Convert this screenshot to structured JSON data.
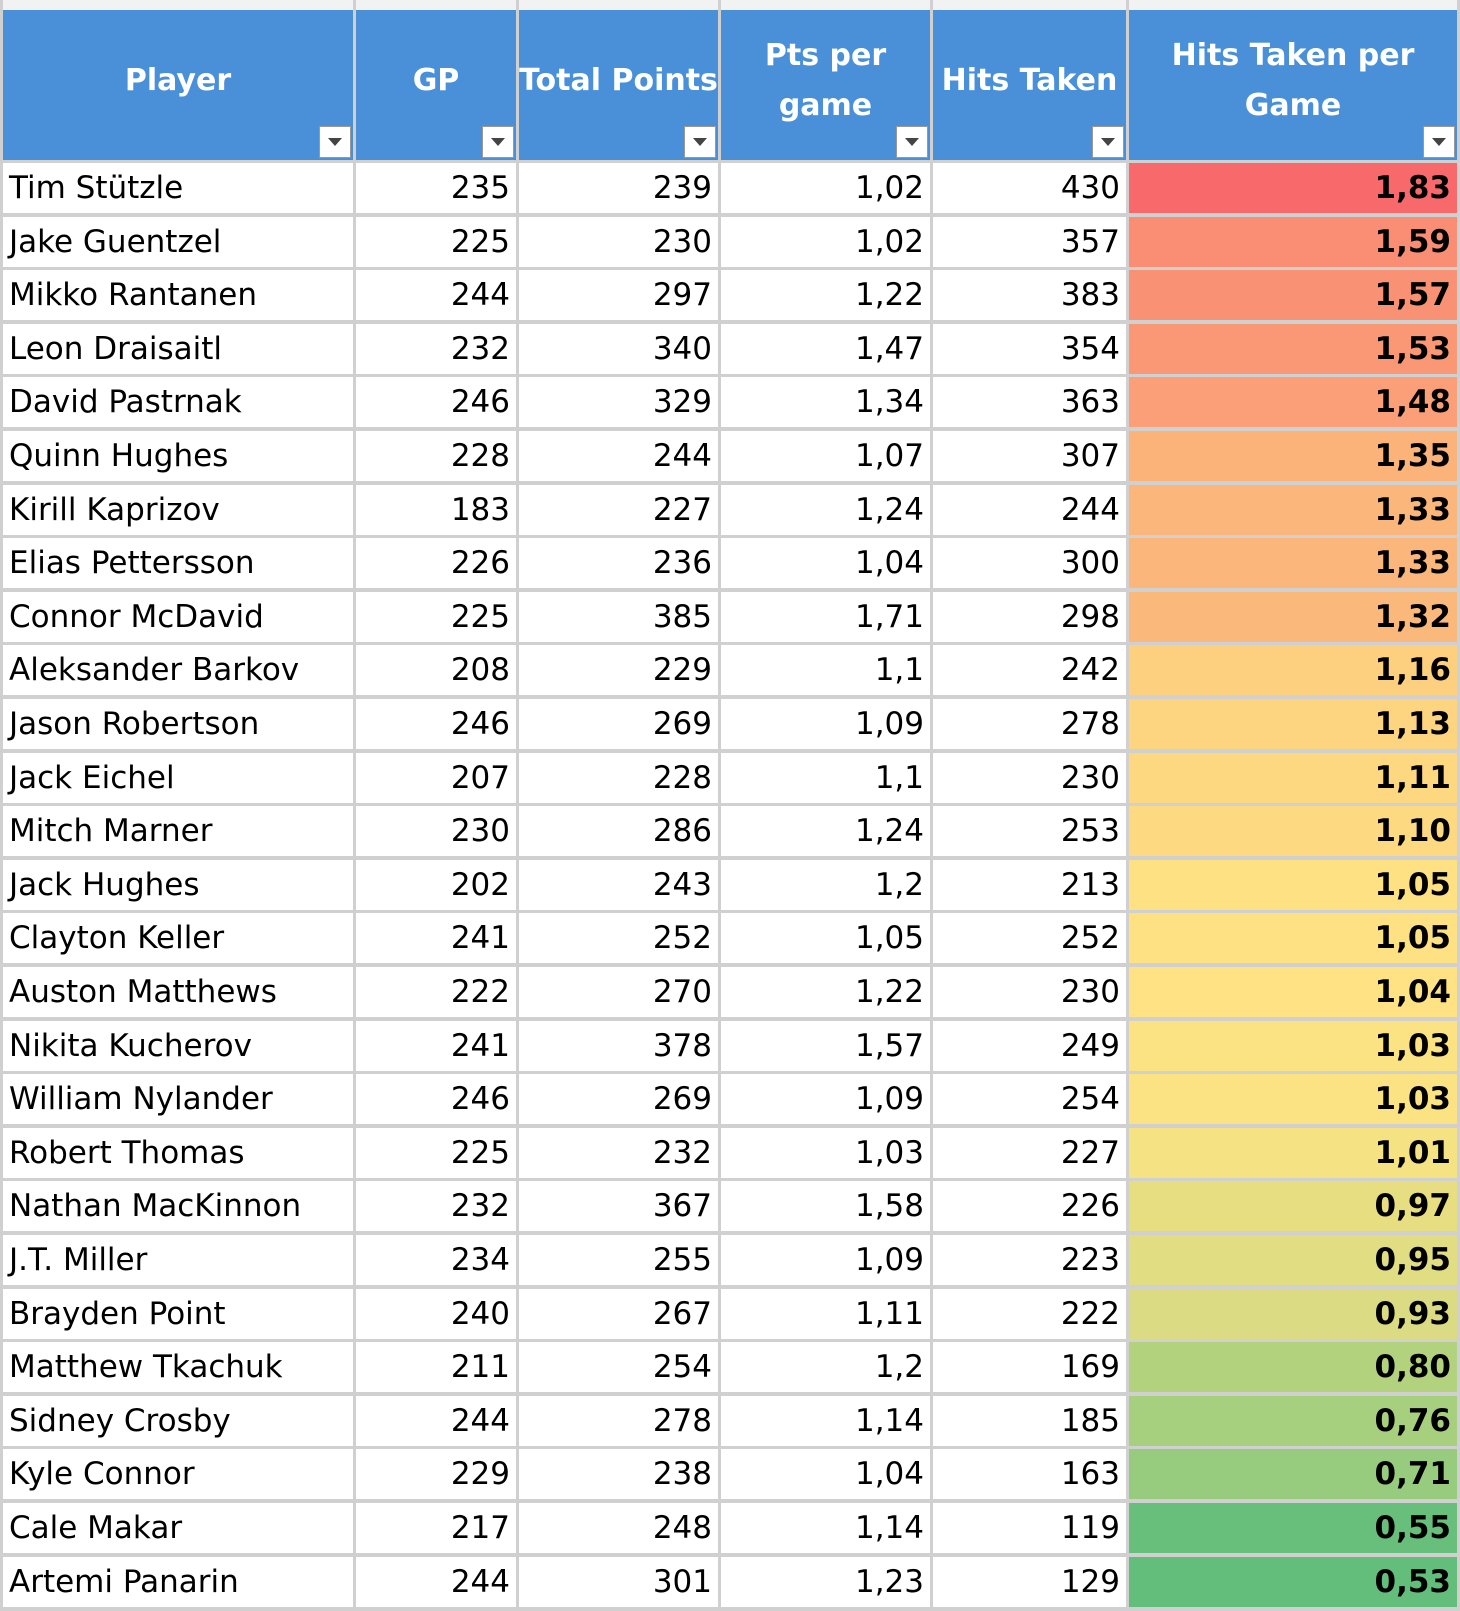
{
  "table": {
    "columns": [
      {
        "key": "player",
        "label": "Player",
        "align": "left"
      },
      {
        "key": "gp",
        "label": "GP",
        "align": "right"
      },
      {
        "key": "total_points",
        "label": "Total Points",
        "align": "right"
      },
      {
        "key": "pts_per_game",
        "label": "Pts per\ngame",
        "align": "right"
      },
      {
        "key": "hits_taken",
        "label": "Hits Taken",
        "align": "right"
      },
      {
        "key": "hits_per_game",
        "label": "Hits Taken per\nGame",
        "align": "right"
      }
    ],
    "filter_icon": "dropdown-arrow-icon",
    "header_color": "#4a90d9",
    "header_text_color": "#ffffff",
    "rows": [
      {
        "player": "Tim Stützle",
        "gp": "235",
        "total_points": "239",
        "pts_per_game": "1,02",
        "hits_taken": "430",
        "hits_per_game": "1,83",
        "heat_color": "#f8696b"
      },
      {
        "player": "Jake Guentzel",
        "gp": "225",
        "total_points": "230",
        "pts_per_game": "1,02",
        "hits_taken": "357",
        "hits_per_game": "1,59",
        "heat_color": "#f98e74"
      },
      {
        "player": "Mikko Rantanen",
        "gp": "244",
        "total_points": "297",
        "pts_per_game": "1,22",
        "hits_taken": "383",
        "hits_per_game": "1,57",
        "heat_color": "#f99174"
      },
      {
        "player": "Leon Draisaitl",
        "gp": "232",
        "total_points": "340",
        "pts_per_game": "1,47",
        "hits_taken": "354",
        "hits_per_game": "1,53",
        "heat_color": "#fa9775"
      },
      {
        "player": "David Pastrnak",
        "gp": "246",
        "total_points": "329",
        "pts_per_game": "1,34",
        "hits_taken": "363",
        "hits_per_game": "1,48",
        "heat_color": "#fa9f77"
      },
      {
        "player": "Quinn Hughes",
        "gp": "228",
        "total_points": "244",
        "pts_per_game": "1,07",
        "hits_taken": "307",
        "hits_per_game": "1,35",
        "heat_color": "#fbb37a"
      },
      {
        "player": "Kirill Kaprizov",
        "gp": "183",
        "total_points": "227",
        "pts_per_game": "1,24",
        "hits_taken": "244",
        "hits_per_game": "1,33",
        "heat_color": "#fbb67b"
      },
      {
        "player": "Elias Pettersson",
        "gp": "226",
        "total_points": "236",
        "pts_per_game": "1,04",
        "hits_taken": "300",
        "hits_per_game": "1,33",
        "heat_color": "#fbb67b"
      },
      {
        "player": "Connor McDavid",
        "gp": "225",
        "total_points": "385",
        "pts_per_game": "1,71",
        "hits_taken": "298",
        "hits_per_game": "1,32",
        "heat_color": "#fbb87b"
      },
      {
        "player": "Aleksander Barkov",
        "gp": "208",
        "total_points": "229",
        "pts_per_game": "1,1",
        "hits_taken": "242",
        "hits_per_game": "1,16",
        "heat_color": "#fdd07f"
      },
      {
        "player": "Jason Robertson",
        "gp": "246",
        "total_points": "269",
        "pts_per_game": "1,09",
        "hits_taken": "278",
        "hits_per_game": "1,13",
        "heat_color": "#fdd580"
      },
      {
        "player": "Jack Eichel",
        "gp": "207",
        "total_points": "228",
        "pts_per_game": "1,1",
        "hits_taken": "230",
        "hits_per_game": "1,11",
        "heat_color": "#fdd881"
      },
      {
        "player": "Mitch Marner",
        "gp": "230",
        "total_points": "286",
        "pts_per_game": "1,24",
        "hits_taken": "253",
        "hits_per_game": "1,10",
        "heat_color": "#fdd981"
      },
      {
        "player": "Jack Hughes",
        "gp": "202",
        "total_points": "243",
        "pts_per_game": "1,2",
        "hits_taken": "213",
        "hits_per_game": "1,05",
        "heat_color": "#fee182"
      },
      {
        "player": "Clayton Keller",
        "gp": "241",
        "total_points": "252",
        "pts_per_game": "1,05",
        "hits_taken": "252",
        "hits_per_game": "1,05",
        "heat_color": "#fee182"
      },
      {
        "player": "Auston Matthews",
        "gp": "222",
        "total_points": "270",
        "pts_per_game": "1,22",
        "hits_taken": "230",
        "hits_per_game": "1,04",
        "heat_color": "#fee283"
      },
      {
        "player": "Nikita Kucherov",
        "gp": "241",
        "total_points": "378",
        "pts_per_game": "1,57",
        "hits_taken": "249",
        "hits_per_game": "1,03",
        "heat_color": "#fbe383"
      },
      {
        "player": "William Nylander",
        "gp": "246",
        "total_points": "269",
        "pts_per_game": "1,09",
        "hits_taken": "254",
        "hits_per_game": "1,03",
        "heat_color": "#fbe383"
      },
      {
        "player": "Robert Thomas",
        "gp": "225",
        "total_points": "232",
        "pts_per_game": "1,03",
        "hits_taken": "227",
        "hits_per_game": "1,01",
        "heat_color": "#f4e283"
      },
      {
        "player": "Nathan MacKinnon",
        "gp": "232",
        "total_points": "367",
        "pts_per_game": "1,58",
        "hits_taken": "226",
        "hits_per_game": "0,97",
        "heat_color": "#e7de82"
      },
      {
        "player": "J.T. Miller",
        "gp": "234",
        "total_points": "255",
        "pts_per_game": "1,09",
        "hits_taken": "223",
        "hits_per_game": "0,95",
        "heat_color": "#e1dd82"
      },
      {
        "player": "Brayden Point",
        "gp": "240",
        "total_points": "267",
        "pts_per_game": "1,11",
        "hits_taken": "222",
        "hits_per_game": "0,93",
        "heat_color": "#dadb82"
      },
      {
        "player": "Matthew Tkachuk",
        "gp": "211",
        "total_points": "254",
        "pts_per_game": "1,2",
        "hits_taken": "169",
        "hits_per_game": "0,80",
        "heat_color": "#b2d27e"
      },
      {
        "player": "Sidney Crosby",
        "gp": "244",
        "total_points": "278",
        "pts_per_game": "1,14",
        "hits_taken": "185",
        "hits_per_game": "0,76",
        "heat_color": "#a6cf7e"
      },
      {
        "player": "Kyle Connor",
        "gp": "229",
        "total_points": "238",
        "pts_per_game": "1,04",
        "hits_taken": "163",
        "hits_per_game": "0,71",
        "heat_color": "#97cb7d"
      },
      {
        "player": "Cale Makar",
        "gp": "217",
        "total_points": "248",
        "pts_per_game": "1,14",
        "hits_taken": "119",
        "hits_per_game": "0,55",
        "heat_color": "#67bf7b"
      },
      {
        "player": "Artemi Panarin",
        "gp": "244",
        "total_points": "301",
        "pts_per_game": "1,23",
        "hits_taken": "129",
        "hits_per_game": "0,53",
        "heat_color": "#63be7b"
      }
    ]
  }
}
